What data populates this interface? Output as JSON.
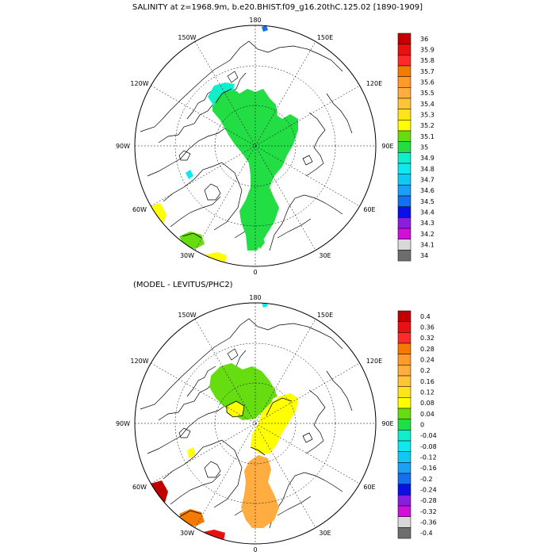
{
  "figure": {
    "title": "SALINITY at z=1968.9m, b.e20.BHIST.f09_g16.20thC.125.02 [1890-1909]",
    "subtitle": "(MODEL - LEVITUS/PHC2)"
  },
  "lon_labels": [
    "180",
    "150E",
    "120E",
    "90E",
    "60E",
    "30E",
    "0",
    "30W",
    "60W",
    "90W",
    "120W",
    "150W"
  ],
  "panels": [
    {
      "name": "salinity",
      "colorbar": {
        "labels": [
          "36",
          "35.9",
          "35.8",
          "35.7",
          "35.6",
          "35.5",
          "35.4",
          "35.3",
          "35.2",
          "35.1",
          "35",
          "34.9",
          "34.8",
          "34.7",
          "34.6",
          "34.5",
          "34.4",
          "34.3",
          "34.2",
          "34.1",
          "34"
        ],
        "colors": [
          "#c00000",
          "#e81010",
          "#ff2a2a",
          "#f47a00",
          "#ff9b2a",
          "#ffad40",
          "#ffc438",
          "#ffe41a",
          "#ffff00",
          "#66dd10",
          "#22dd44",
          "#10eecc",
          "#10e8f0",
          "#10c8f4",
          "#1aa0f4",
          "#1470f0",
          "#0a10e6",
          "#8a1ee0",
          "#d010d8",
          "#d8d8d8",
          "#6e6e6e"
        ]
      }
    },
    {
      "name": "difference",
      "colorbar": {
        "labels": [
          "0.4",
          "0.36",
          "0.32",
          "0.28",
          "0.24",
          "0.2",
          "0.16",
          "0.12",
          "0.08",
          "0.04",
          "0",
          "-0.04",
          "-0.08",
          "-0.12",
          "-0.16",
          "-0.2",
          "-0.24",
          "-0.28",
          "-0.32",
          "-0.36",
          "-0.4"
        ],
        "colors": [
          "#c00000",
          "#e81010",
          "#ff2a2a",
          "#f47a00",
          "#ff9b2a",
          "#ffad40",
          "#ffc438",
          "#ffe41a",
          "#ffff00",
          "#66dd10",
          "#22dd44",
          "#10eecc",
          "#10e8f0",
          "#10c8f4",
          "#1aa0f4",
          "#1470f0",
          "#0a10e6",
          "#8a1ee0",
          "#d010d8",
          "#d8d8d8",
          "#6e6e6e"
        ]
      }
    }
  ]
}
